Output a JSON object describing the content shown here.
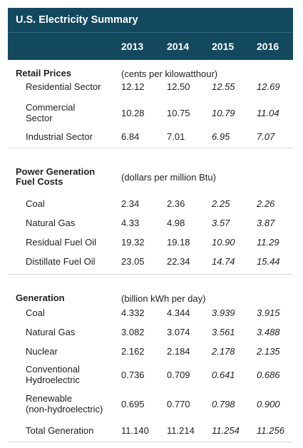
{
  "title": "U.S. Electricity Summary",
  "years": [
    "2013",
    "2014",
    "2015",
    "2016"
  ],
  "sections": [
    {
      "heading": "Retail Prices",
      "unit": "(cents per kilowatthour)",
      "rows": [
        {
          "label": "Residential Sector",
          "values": [
            "12.12",
            "12.50",
            "12.55",
            "12.69"
          ]
        },
        {
          "label": "Commercial\nSector",
          "values": [
            "10.28",
            "10.75",
            "10.79",
            "11.04"
          ]
        },
        {
          "label": "Industrial Sector",
          "values": [
            "6.84",
            "7.01",
            "6.95",
            "7.07"
          ]
        }
      ]
    },
    {
      "heading": "Power Generation\nFuel Costs",
      "unit": "(dollars per million Btu)",
      "rows": [
        {
          "label": "Coal",
          "values": [
            "2.34",
            "2.36",
            "2.25",
            "2.26"
          ]
        },
        {
          "label": "Natural Gas",
          "values": [
            "4.33",
            "4.98",
            "3.57",
            "3.87"
          ]
        },
        {
          "label": "Residual Fuel Oil",
          "values": [
            "19.32",
            "19.18",
            "10.90",
            "11.29"
          ]
        },
        {
          "label": "Distillate Fuel Oil",
          "values": [
            "23.05",
            "22.34",
            "14.74",
            "15.44"
          ]
        }
      ]
    },
    {
      "heading": "Generation",
      "unit": "(billion kWh per day)",
      "rows": [
        {
          "label": "Coal",
          "values": [
            "4.332",
            "4.344",
            "3.939",
            "3.915"
          ]
        },
        {
          "label": "Natural Gas",
          "values": [
            "3.082",
            "3.074",
            "3.561",
            "3.488"
          ]
        },
        {
          "label": "Nuclear",
          "values": [
            "2.162",
            "2.184",
            "2.178",
            "2.135"
          ]
        },
        {
          "label": "Conventional\nHydroelectric",
          "values": [
            "0.736",
            "0.709",
            "0.641",
            "0.686"
          ]
        },
        {
          "label": "Renewable\n(non-hydroelectric)",
          "values": [
            "0.695",
            "0.770",
            "0.798",
            "0.900"
          ]
        },
        {
          "label": "Total Generation",
          "values": [
            "11.140",
            "11.214",
            "11.254",
            "11.256"
          ]
        }
      ]
    }
  ]
}
